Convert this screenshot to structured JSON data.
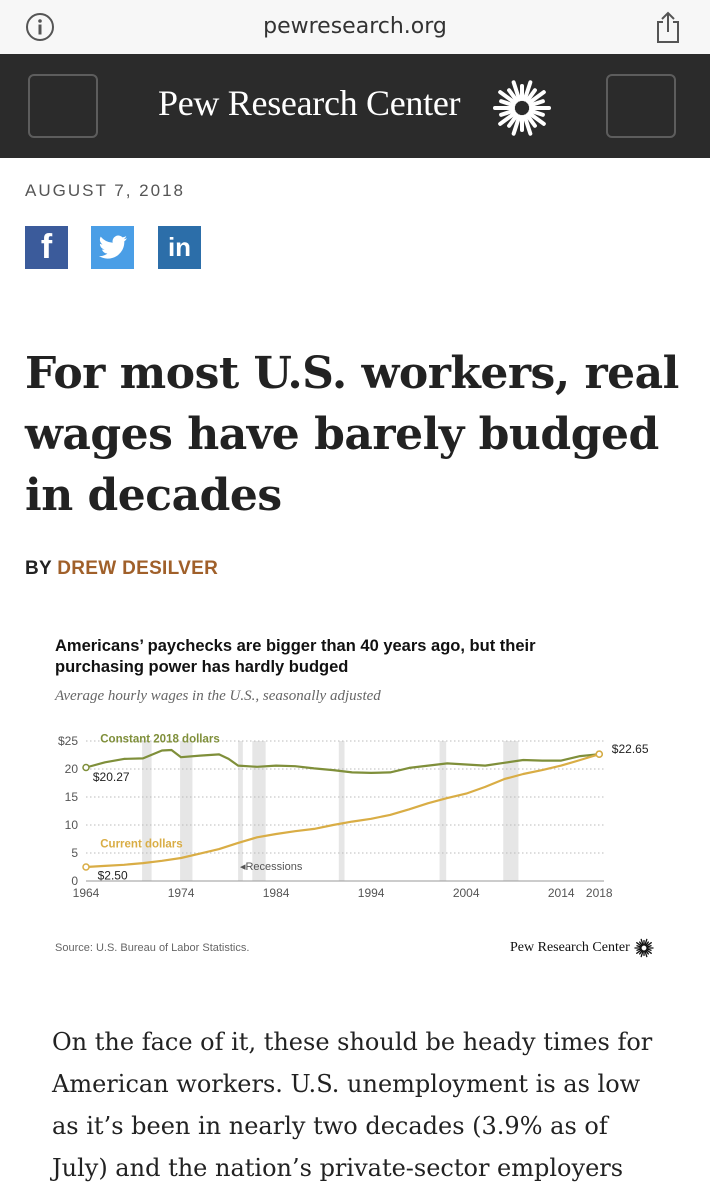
{
  "browser": {
    "url": "pewresearch.org",
    "icons": {
      "info": "info-icon",
      "share": "share-icon"
    }
  },
  "header": {
    "site_name": "Pew Research Center",
    "icons": {
      "logo": "sunburst-logo-icon",
      "menu": "menu-button",
      "search": "search-button"
    }
  },
  "article": {
    "date": "AUGUST 7, 2018",
    "social": {
      "facebook": "f",
      "linkedin": "in",
      "colors": {
        "facebook": "#3b5b9b",
        "twitter": "#4a9ee6",
        "linkedin": "#2c6ea9"
      }
    },
    "headline": "For most U.S. workers, real wages have barely budged in decades",
    "byline_prefix": "BY",
    "author": "DREW DESILVER",
    "body": "On the face of it, these should be heady times for American workers. U.S. unemployment is as low as it’s been in nearly two decades (3.9% as of July) and the nation’s private-sector employers"
  },
  "chart_data": {
    "type": "line",
    "title": "Americans’ paychecks are bigger than 40 years ago, but their purchasing power has hardly budged",
    "subtitle": "Average hourly wages in the U.S., seasonally adjusted",
    "source": "Source: U.S. Bureau of Labor Statistics.",
    "credit": "Pew Research Center",
    "x_ticks": [
      "1964",
      "1974",
      "1984",
      "1994",
      "2004",
      "2014",
      "2018"
    ],
    "y_ticks": [
      "0",
      "5",
      "10",
      "15",
      "20",
      "$25"
    ],
    "xlim": [
      1964,
      2018.5
    ],
    "ylim": [
      0,
      25
    ],
    "grid": true,
    "recessions_label": "Recessions",
    "recessions": [
      [
        1969.9,
        1970.9
      ],
      [
        1973.9,
        1975.2
      ],
      [
        1980.0,
        1980.5
      ],
      [
        1981.5,
        1982.9
      ],
      [
        1990.6,
        1991.2
      ],
      [
        2001.2,
        2001.9
      ],
      [
        2007.9,
        2009.5
      ]
    ],
    "annotations": {
      "real_start": "$20.27",
      "current_start": "$2.50",
      "end": "$22.65"
    },
    "series": [
      {
        "name": "Constant 2018 dollars",
        "color": "#7f8f3a",
        "x": [
          1964,
          1966,
          1968,
          1970,
          1972,
          1973,
          1974,
          1976,
          1978,
          1979,
          1980,
          1982,
          1984,
          1986,
          1988,
          1990,
          1992,
          1994,
          1996,
          1998,
          2000,
          2002,
          2004,
          2006,
          2008,
          2010,
          2012,
          2014,
          2016,
          2018
        ],
        "values": [
          20.27,
          21.2,
          21.8,
          21.9,
          23.3,
          23.4,
          22.1,
          22.4,
          22.6,
          21.8,
          20.6,
          20.4,
          20.6,
          20.5,
          20.1,
          19.8,
          19.4,
          19.3,
          19.4,
          20.2,
          20.6,
          21.0,
          20.8,
          20.6,
          21.1,
          21.6,
          21.5,
          21.5,
          22.3,
          22.65
        ]
      },
      {
        "name": "Current dollars",
        "color": "#d9ad45",
        "x": [
          1964,
          1966,
          1968,
          1970,
          1972,
          1974,
          1976,
          1978,
          1980,
          1982,
          1984,
          1986,
          1988,
          1990,
          1992,
          1994,
          1996,
          1998,
          2000,
          2002,
          2004,
          2006,
          2008,
          2010,
          2012,
          2014,
          2016,
          2018
        ],
        "values": [
          2.5,
          2.7,
          2.9,
          3.2,
          3.6,
          4.1,
          4.9,
          5.7,
          6.8,
          7.8,
          8.4,
          8.9,
          9.3,
          10.0,
          10.6,
          11.1,
          11.8,
          12.8,
          13.9,
          14.8,
          15.6,
          16.8,
          18.2,
          19.1,
          19.8,
          20.6,
          21.6,
          22.65
        ]
      }
    ]
  }
}
